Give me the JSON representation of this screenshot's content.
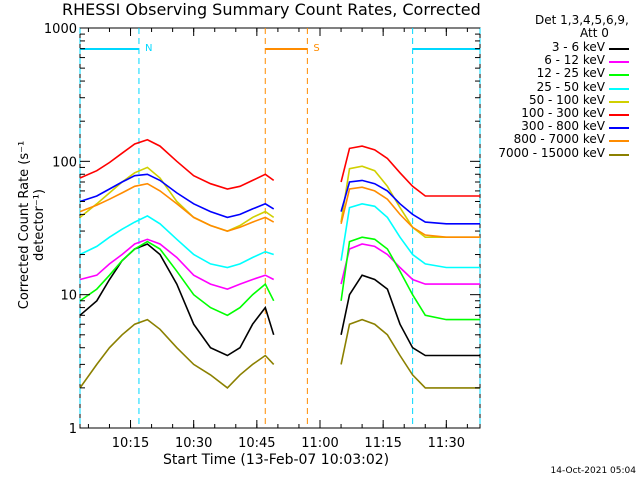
{
  "chart_data": {
    "type": "line",
    "title": "RHESSI Observing Summary Count Rates, Corrected",
    "xlabel": "Start Time (13-Feb-07 10:03:02)",
    "ylabel": "Corrected Count Rate (s⁻¹ detector⁻¹)",
    "y_scale": "log",
    "ylim": [
      1,
      1000
    ],
    "xlim": [
      "10:03",
      "11:38"
    ],
    "x_ticks": [
      "10:15",
      "10:30",
      "10:45",
      "11:00",
      "11:15",
      "11:30"
    ],
    "y_ticks": [
      "1",
      "10",
      "100",
      "1000"
    ],
    "detectors": "Det 1,3,4,5,6,9,",
    "attenuator": "Att 0",
    "timestamp": "14-Oct-2021 05:04",
    "markers": [
      {
        "label": "N",
        "color": "#00d8ff",
        "bar": [
          "10:03",
          "10:17"
        ]
      },
      {
        "label": "S",
        "color": "#ff8c00",
        "bar": [
          "10:47",
          "10:57"
        ]
      },
      {
        "label": "",
        "color": "#00d8ff",
        "bar": [
          "11:22",
          "11:38"
        ]
      }
    ],
    "series": [
      {
        "name": "3 - 6 keV",
        "color": "#000000",
        "values": [
          7,
          9,
          13,
          18,
          22,
          24,
          20,
          12,
          6,
          4,
          3.5,
          4,
          6,
          8,
          5,
          5,
          10,
          14,
          13,
          11,
          6,
          4,
          3.5,
          3.5,
          3.5,
          3.5
        ]
      },
      {
        "name": "6 - 12 keV",
        "color": "#ff00ff",
        "values": [
          13,
          14,
          17,
          20,
          24,
          26,
          24,
          19,
          14,
          12,
          11,
          12,
          13,
          14,
          13,
          12,
          22,
          24,
          23,
          20,
          16,
          13,
          12,
          12,
          12,
          12
        ]
      },
      {
        "name": "12 - 25 keV",
        "color": "#00ff00",
        "values": [
          9,
          11,
          14,
          18,
          22,
          25,
          22,
          15,
          10,
          8,
          7,
          8,
          10,
          12,
          9,
          9,
          25,
          27,
          26,
          22,
          15,
          10,
          7,
          6.5,
          6.5,
          6.5
        ]
      },
      {
        "name": "25 - 50 keV",
        "color": "#00ffff",
        "values": [
          20,
          23,
          27,
          31,
          35,
          39,
          34,
          26,
          20,
          17,
          16,
          17,
          19,
          21,
          20,
          18,
          45,
          48,
          46,
          38,
          27,
          20,
          17,
          16,
          16,
          16
        ]
      },
      {
        "name": "50 - 100 keV",
        "color": "#d0d000",
        "values": [
          38,
          48,
          58,
          70,
          82,
          90,
          75,
          50,
          38,
          33,
          30,
          33,
          38,
          42,
          38,
          35,
          88,
          92,
          85,
          65,
          45,
          32,
          27,
          27,
          27,
          27
        ]
      },
      {
        "name": "100 - 300 keV",
        "color": "#ff0000",
        "values": [
          75,
          85,
          98,
          115,
          135,
          145,
          130,
          100,
          78,
          68,
          62,
          65,
          72,
          80,
          72,
          70,
          125,
          130,
          122,
          105,
          82,
          65,
          55,
          55,
          55,
          55
        ]
      },
      {
        "name": "300 - 800 keV",
        "color": "#0000ff",
        "values": [
          50,
          55,
          62,
          70,
          78,
          80,
          72,
          58,
          48,
          42,
          38,
          40,
          44,
          48,
          44,
          42,
          70,
          72,
          68,
          60,
          48,
          40,
          35,
          34,
          34,
          34
        ]
      },
      {
        "name": "800 - 7000 keV",
        "color": "#ff8c00",
        "values": [
          42,
          47,
          52,
          58,
          65,
          68,
          60,
          48,
          38,
          33,
          30,
          32,
          35,
          38,
          35,
          34,
          62,
          64,
          60,
          52,
          40,
          32,
          28,
          27,
          27,
          27
        ]
      },
      {
        "name": "7000 - 15000 keV",
        "color": "#8b8000",
        "values": [
          2,
          3,
          4,
          5,
          6,
          6.5,
          5.5,
          4,
          3,
          2.5,
          2,
          2.5,
          3,
          3.5,
          3,
          3,
          6,
          6.5,
          6,
          5,
          3.5,
          2.5,
          2,
          2,
          2,
          2
        ]
      }
    ],
    "times": [
      "10:03",
      "10:07",
      "10:10",
      "10:13",
      "10:16",
      "10:19",
      "10:22",
      "10:26",
      "10:30",
      "10:34",
      "10:38",
      "10:41",
      "10:44",
      "10:47",
      "10:49",
      "11:05",
      "11:07",
      "11:10",
      "11:13",
      "11:16",
      "11:19",
      "11:22",
      "11:25",
      "11:30",
      "11:34",
      "11:38"
    ]
  }
}
